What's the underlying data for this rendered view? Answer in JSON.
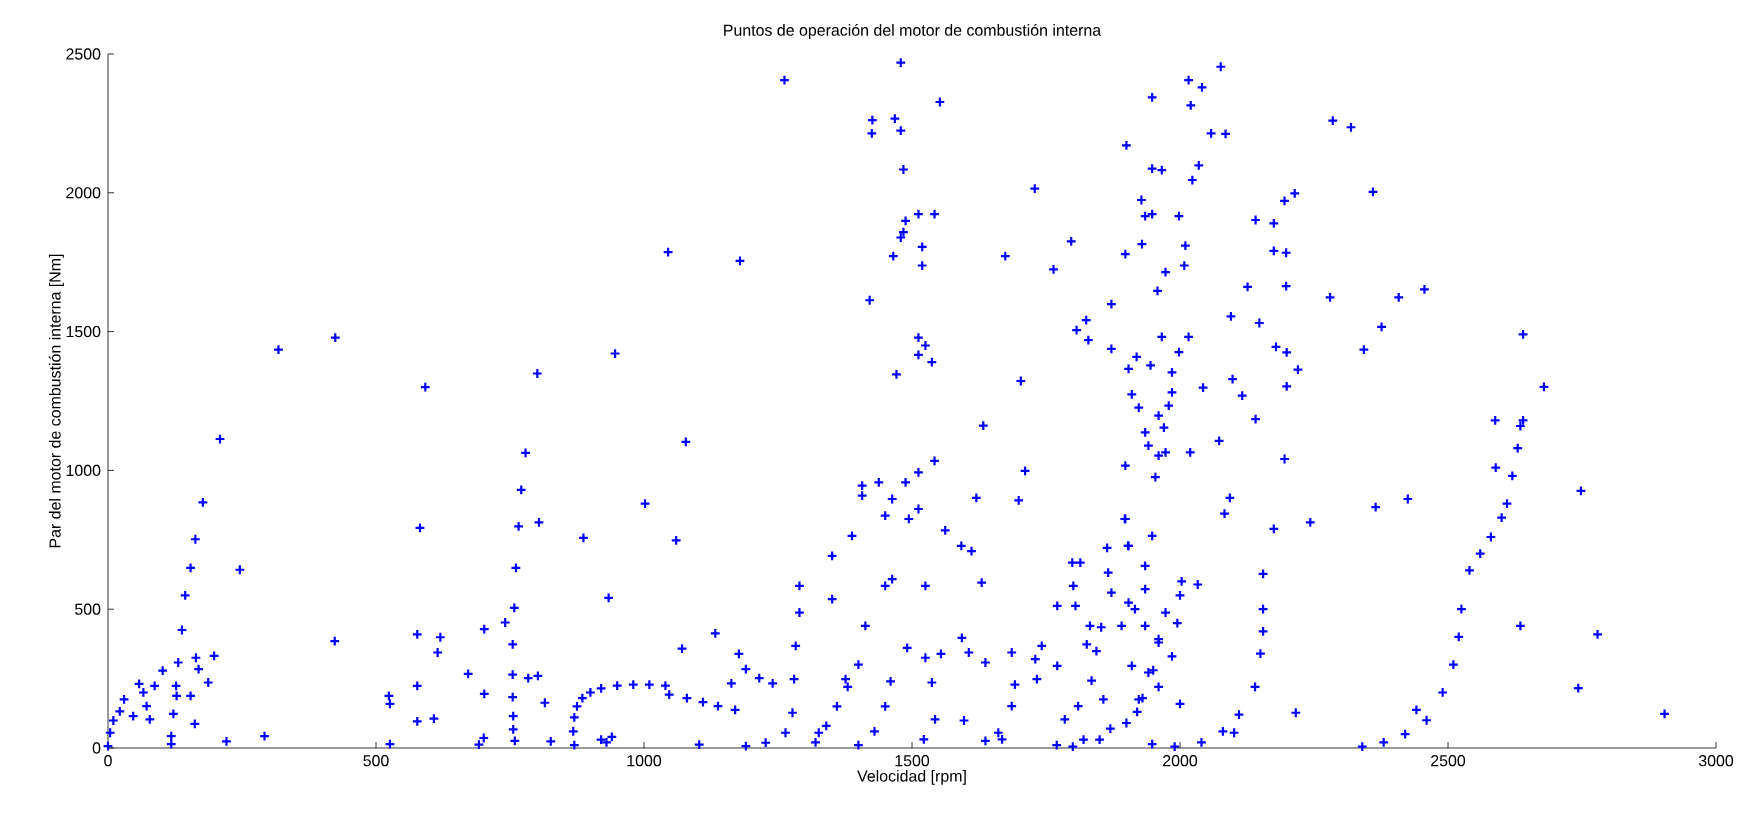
{
  "chart_data": {
    "type": "scatter",
    "title": "Puntos de operación del motor de combustión interna",
    "xlabel": "Velocidad [rpm]",
    "ylabel": "Par del motor de combustión interna [Nm]",
    "color": "#0000ff",
    "marker": "cross",
    "xlim": [
      0,
      3000
    ],
    "ylim": [
      0,
      2500
    ],
    "xticks": [
      0,
      500,
      1000,
      1500,
      2000,
      2500,
      3000
    ],
    "yticks": [
      0,
      500,
      1000,
      1500,
      2000,
      2500
    ],
    "x": [
      318,
      424,
      209,
      177,
      163,
      154,
      144,
      138,
      131,
      102,
      87,
      127,
      164,
      169,
      198,
      187,
      246,
      128,
      122,
      154,
      162,
      118,
      118,
      221,
      292,
      58,
      66,
      30,
      22,
      10,
      4,
      0,
      72,
      47,
      78,
      423,
      524,
      526,
      526,
      577,
      577,
      577,
      608,
      615,
      620,
      582,
      592,
      672,
      702,
      702,
      701,
      692,
      741,
      755,
      758,
      761,
      766,
      771,
      779,
      801,
      804,
      755,
      755,
      756,
      756,
      759,
      784,
      802,
      815,
      826,
      887,
      934,
      946,
      870,
      868,
      870,
      875,
      885,
      900,
      920,
      950,
      980,
      1010,
      1040,
      930,
      940,
      920,
      1262,
      1479,
      1552,
      1426,
      1425,
      1468,
      1479,
      1484,
      1488,
      1484,
      1479,
      1512,
      1542,
      1465,
      1519,
      1519,
      1045,
      1179,
      1421,
      1512,
      1525,
      1537,
      1512,
      1471,
      1078,
      1002,
      1060,
      1071,
      1133,
      1177,
      1190,
      1163,
      1215,
      1240,
      1170,
      1103,
      1047,
      1080,
      1110,
      1138,
      1290,
      1290,
      1283,
      1280,
      1277,
      1264,
      1227,
      1190,
      1326,
      1376,
      1413,
      1351,
      1351,
      1388,
      1407,
      1438,
      1407,
      1463,
      1450,
      1494,
      1512,
      1488,
      1512,
      1542,
      1562,
      1592,
      1611,
      1630,
      1620,
      1633,
      1699,
      1711,
      1703,
      1729,
      1674,
      1764,
      1797,
      1807,
      1825,
      1829,
      1872,
      1872,
      1450,
      1463,
      1525,
      1491,
      1525,
      1554,
      1537,
      1543,
      1522,
      1597,
      1593,
      1606,
      1637,
      1686,
      1730,
      1742,
      1733,
      1692,
      1686,
      1661,
      1637,
      1668,
      1771,
      1805,
      1832,
      1801,
      1799,
      1814,
      1771,
      1826,
      1844,
      1853,
      1835,
      1857,
      1866,
      1864,
      1897,
      1903,
      1872,
      1916,
      1810,
      1785,
      1400,
      1430,
      1450,
      1460,
      1320,
      1340,
      1360,
      1380,
      1400,
      1770,
      1820,
      1870,
      1920,
      1960,
      1985,
      1995,
      2000,
      2003,
      1800,
      1850,
      1900,
      1930,
      1950,
      1960,
      1990,
      2040,
      2080,
      2110,
      2140,
      2150,
      2155,
      2155,
      2340,
      2380,
      2420,
      2460,
      2490,
      2510,
      2520,
      2525,
      2540,
      2560,
      2580,
      2600,
      2610,
      2620,
      2630,
      2635,
      2640,
      2076,
      2016,
      2041,
      2020,
      1948,
      2058,
      2085,
      2035,
      2023,
      1948,
      1966,
      1900,
      1928,
      1935,
      1948,
      1998,
      2010,
      2008,
      1929,
      1973,
      1958,
      1898,
      2126,
      2095,
      2148,
      2141,
      2175,
      2195,
      2214,
      2175,
      2198,
      2198,
      2285,
      2319,
      2360,
      2280,
      2408,
      2456,
      2376,
      2343,
      2179,
      2199,
      2220,
      2199,
      2098,
      2116,
      2141,
      2043,
      2073,
      2019,
      2195,
      2640,
      2679,
      2588,
      2589,
      2748,
      2093,
      2083,
      2175,
      2243,
      2365,
      2425,
      2155,
      2033,
      2635,
      2779,
      2743,
      2904,
      2216,
      2441,
      2101,
      2000,
      1948,
      1966,
      2016,
      1998,
      1985,
      1985,
      1979,
      1960,
      1970,
      1935,
      1941,
      1960,
      1973,
      1954,
      1898,
      1910,
      1923,
      1919,
      1945,
      1904,
      1898,
      1904,
      1948,
      1935,
      1935,
      1904,
      1891,
      1935,
      1960,
      1910,
      1941,
      1923,
      1973
    ],
    "values": [
      1435,
      1478,
      1113,
      885,
      752,
      649,
      550,
      425,
      308,
      279,
      224,
      224,
      325,
      284,
      332,
      236,
      642,
      188,
      123,
      188,
      87,
      43,
      14,
      24,
      43,
      231,
      200,
      175,
      132,
      99,
      55,
      7,
      151,
      115,
      103,
      385,
      188,
      159,
      14,
      409,
      224,
      96,
      106,
      344,
      399,
      793,
      1300,
      267,
      428,
      195,
      36,
      12,
      452,
      373,
      505,
      649,
      798,
      930,
      1063,
      1349,
      813,
      264,
      183,
      115,
      67,
      26,
      252,
      260,
      163,
      24,
      757,
      541,
      1421,
      10,
      60,
      110,
      150,
      180,
      200,
      215,
      225,
      228,
      228,
      225,
      20,
      40,
      30,
      2406,
      2469,
      2327,
      2262,
      2214,
      2267,
      2224,
      2084,
      1899,
      1858,
      1839,
      1923,
      1923,
      1772,
      1805,
      1738,
      1786,
      1755,
      1613,
      1478,
      1450,
      1390,
      1416,
      1346,
      1103,
      880,
      748,
      358,
      413,
      339,
      284,
      233,
      252,
      233,
      137,
      12,
      192,
      180,
      165,
      151,
      584,
      488,
      368,
      248,
      127,
      55,
      19,
      7,
      55,
      248,
      440,
      536,
      692,
      764,
      945,
      957,
      909,
      897,
      837,
      825,
      861,
      957,
      993,
      1034,
      784,
      728,
      709,
      596,
      901,
      1161,
      892,
      998,
      1322,
      2015,
      1772,
      1724,
      1825,
      1505,
      1541,
      1469,
      1599,
      1438,
      584,
      608,
      584,
      361,
      325,
      339,
      236,
      103,
      31,
      99,
      397,
      344,
      308,
      344,
      320,
      368,
      248,
      228,
      151,
      55,
      26,
      31,
      512,
      512,
      440,
      584,
      668,
      668,
      296,
      373,
      349,
      435,
      243,
      175,
      632,
      721,
      825,
      728,
      560,
      500,
      151,
      103,
      10,
      60,
      150,
      240,
      20,
      80,
      150,
      220,
      300,
      10,
      30,
      70,
      130,
      220,
      330,
      450,
      550,
      600,
      5,
      30,
      90,
      180,
      280,
      380,
      5,
      20,
      60,
      120,
      220,
      340,
      420,
      500,
      5,
      20,
      50,
      100,
      200,
      300,
      400,
      500,
      640,
      700,
      760,
      830,
      880,
      980,
      1080,
      1160,
      1180,
      2454,
      2406,
      2380,
      2315,
      2344,
      2214,
      2212,
      2099,
      2046,
      2087,
      2082,
      2171,
      1974,
      1916,
      1923,
      1916,
      1810,
      1738,
      1815,
      1714,
      1647,
      1779,
      1661,
      1555,
      1531,
      1902,
      1890,
      1971,
      1998,
      1791,
      1784,
      1664,
      2260,
      2236,
      2003,
      1623,
      1623,
      1652,
      1517,
      1435,
      1445,
      1425,
      1363,
      1303,
      1329,
      1269,
      1185,
      1298,
      1106,
      1065,
      1041,
      1490,
      1301,
      1180,
      1010,
      926,
      901,
      844,
      789,
      813,
      868,
      897,
      627,
      589,
      440,
      409,
      216,
      123,
      127,
      137,
      55,
      159,
      14,
      1481,
      1481,
      1426,
      1353,
      1281,
      1233,
      1197,
      1154,
      1137,
      1089,
      1053,
      1065,
      976,
      1017,
      1274,
      1226,
      1409,
      1378,
      1366,
      825,
      728,
      764,
      656,
      572,
      524,
      440,
      440,
      392,
      296,
      272,
      175,
      488
    ]
  }
}
